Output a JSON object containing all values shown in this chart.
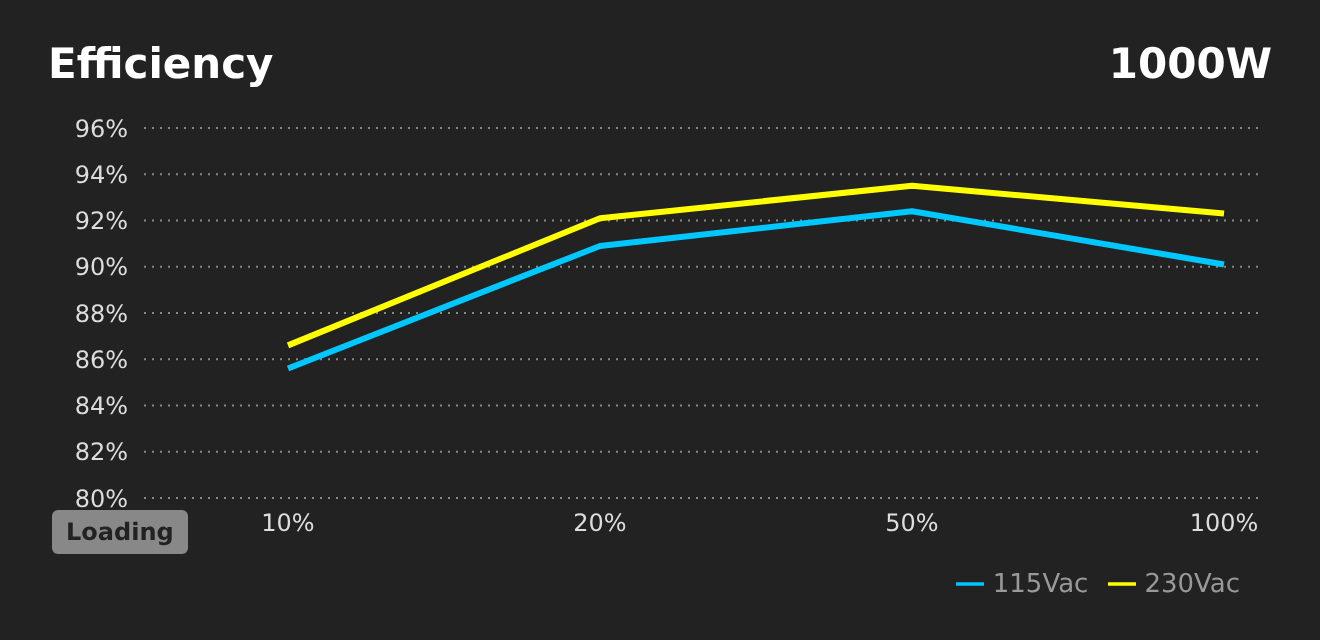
{
  "chart_data": {
    "type": "line",
    "title": "Efficiency",
    "subtitle": "1000W",
    "annotations": [
      "Loading"
    ],
    "categories": [
      "10%",
      "20%",
      "50%",
      "100%"
    ],
    "series": [
      {
        "name": "115Vac",
        "color": "#00c8ff",
        "values": [
          85.6,
          90.9,
          92.4,
          90.1
        ]
      },
      {
        "name": "230Vac",
        "color": "#ffff00",
        "values": [
          86.6,
          92.1,
          93.5,
          92.3
        ]
      }
    ],
    "ylim": [
      80,
      96
    ],
    "yticks": [
      {
        "value": 80,
        "label": "80%"
      },
      {
        "value": 82,
        "label": "82%"
      },
      {
        "value": 84,
        "label": "84%"
      },
      {
        "value": 86,
        "label": "86%"
      },
      {
        "value": 88,
        "label": "88%"
      },
      {
        "value": 90,
        "label": "90%"
      },
      {
        "value": 92,
        "label": "92%"
      },
      {
        "value": 94,
        "label": "94%"
      },
      {
        "value": 96,
        "label": "96%"
      }
    ],
    "grid": "y",
    "legend": "bottom right",
    "marker": "none",
    "line_style": "solid"
  }
}
